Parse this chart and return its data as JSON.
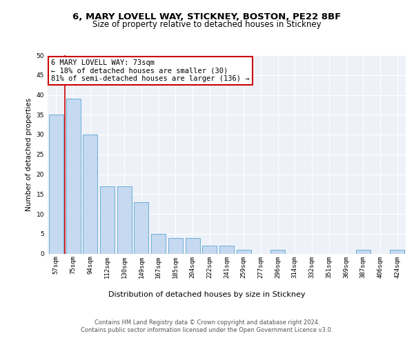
{
  "title1": "6, MARY LOVELL WAY, STICKNEY, BOSTON, PE22 8BF",
  "title2": "Size of property relative to detached houses in Stickney",
  "xlabel": "Distribution of detached houses by size in Stickney",
  "ylabel": "Number of detached properties",
  "categories": [
    "57sqm",
    "75sqm",
    "94sqm",
    "112sqm",
    "130sqm",
    "149sqm",
    "167sqm",
    "185sqm",
    "204sqm",
    "222sqm",
    "241sqm",
    "259sqm",
    "277sqm",
    "296sqm",
    "314sqm",
    "332sqm",
    "351sqm",
    "369sqm",
    "387sqm",
    "406sqm",
    "424sqm"
  ],
  "values": [
    35,
    39,
    30,
    17,
    17,
    13,
    5,
    4,
    4,
    2,
    2,
    1,
    0,
    1,
    0,
    0,
    0,
    0,
    1,
    0,
    1
  ],
  "bar_color": "#c5d9f0",
  "bar_edge_color": "#6baed6",
  "vline_x": 0.5,
  "vline_color": "#cc0000",
  "annotation_line1": "6 MARY LOVELL WAY: 73sqm",
  "annotation_line2": "← 18% of detached houses are smaller (30)",
  "annotation_line3": "81% of semi-detached houses are larger (136) →",
  "annotation_box_color": "#cc0000",
  "ylim": [
    0,
    50
  ],
  "yticks": [
    0,
    5,
    10,
    15,
    20,
    25,
    30,
    35,
    40,
    45,
    50
  ],
  "footer1": "Contains HM Land Registry data © Crown copyright and database right 2024.",
  "footer2": "Contains public sector information licensed under the Open Government Licence v3.0.",
  "bg_color": "#eef2f8",
  "grid_color": "#ffffff",
  "title1_fontsize": 9.5,
  "title2_fontsize": 8.5,
  "xlabel_fontsize": 8,
  "ylabel_fontsize": 7.5,
  "tick_fontsize": 6.5,
  "annotation_fontsize": 7.5,
  "footer_fontsize": 6
}
